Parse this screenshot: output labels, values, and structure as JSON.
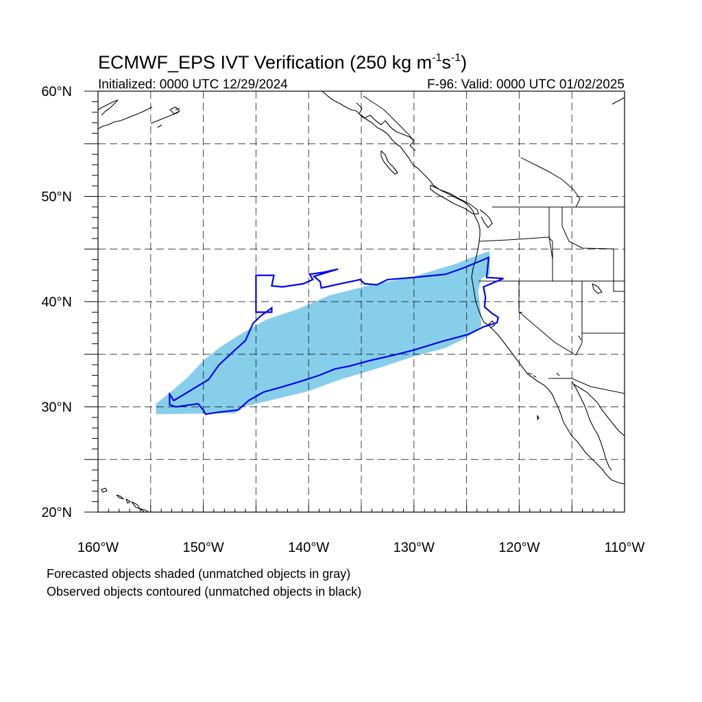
{
  "title_main": "ECMWF_EPS IVT Verification (250 kg m",
  "title_sup1": "-1",
  "title_s": "s",
  "title_sup2": "-1",
  "title_close": ")",
  "initialized": "Initialized: 0000 UTC 12/29/2024",
  "valid": "F-96: Valid: 0000 UTC 01/02/2025",
  "map": {
    "lon_range": [
      -160,
      -110
    ],
    "lat_range": [
      20,
      60
    ],
    "grid_spacing_deg": 5,
    "projection": "cylindrical equidistant",
    "lat_labels": [
      {
        "lat": 60,
        "text": "60°N"
      },
      {
        "lat": 50,
        "text": "50°N"
      },
      {
        "lat": 40,
        "text": "40°N"
      },
      {
        "lat": 30,
        "text": "30°N"
      },
      {
        "lat": 20,
        "text": "20°N"
      }
    ],
    "lon_labels": [
      {
        "lon": -160,
        "text": "160°W"
      },
      {
        "lon": -150,
        "text": "150°W"
      },
      {
        "lon": -140,
        "text": "140°W"
      },
      {
        "lon": -130,
        "text": "130°W"
      },
      {
        "lon": -120,
        "text": "120°W"
      },
      {
        "lon": -110,
        "text": "110°W"
      }
    ]
  },
  "colors": {
    "forecast_fill": "#87CEEB",
    "observed_contour": "#0000EE",
    "coast": "#000000"
  },
  "forecast_object": {
    "polygon": [
      [
        -154.5,
        29.3
      ],
      [
        -147.0,
        29.4
      ],
      [
        -146.2,
        30.0
      ],
      [
        -140.0,
        31.5
      ],
      [
        -137.0,
        32.6
      ],
      [
        -133.0,
        33.8
      ],
      [
        -130.0,
        34.8
      ],
      [
        -127.0,
        35.6
      ],
      [
        -125.0,
        36.6
      ],
      [
        -123.6,
        37.7
      ],
      [
        -123.7,
        39.5
      ],
      [
        -123.9,
        41.0
      ],
      [
        -123.6,
        42.2
      ],
      [
        -122.8,
        42.6
      ],
      [
        -122.8,
        44.8
      ],
      [
        -124.0,
        44.4
      ],
      [
        -126.0,
        43.6
      ],
      [
        -130.0,
        42.4
      ],
      [
        -134.0,
        41.6
      ],
      [
        -138.0,
        40.6
      ],
      [
        -141.0,
        39.3
      ],
      [
        -144.0,
        38.3
      ],
      [
        -146.5,
        36.9
      ],
      [
        -148.5,
        35.6
      ],
      [
        -150.0,
        34.4
      ],
      [
        -151.5,
        32.8
      ],
      [
        -153.0,
        31.5
      ],
      [
        -154.5,
        30.3
      ]
    ]
  },
  "observed_object": {
    "polygon": [
      [
        -152.8,
        30.6
      ],
      [
        -149.5,
        32.6
      ],
      [
        -148.5,
        34.0
      ],
      [
        -147.0,
        35.4
      ],
      [
        -146.0,
        36.3
      ],
      [
        -145.3,
        37.9
      ],
      [
        -144.6,
        38.6
      ],
      [
        -143.5,
        39.4
      ],
      [
        -143.5,
        39.0
      ],
      [
        -145.0,
        39.0
      ],
      [
        -145.0,
        42.5
      ],
      [
        -143.3,
        42.5
      ],
      [
        -143.5,
        41.5
      ],
      [
        -142.5,
        41.4
      ],
      [
        -140.5,
        41.7
      ],
      [
        -139.6,
        42.1
      ],
      [
        -139.9,
        42.6
      ],
      [
        -138.5,
        42.8
      ],
      [
        -137.2,
        43.1
      ],
      [
        -139.5,
        42.4
      ],
      [
        -138.9,
        41.9
      ],
      [
        -138.8,
        41.3
      ],
      [
        -137.0,
        41.7
      ],
      [
        -135.1,
        42.1
      ],
      [
        -134.7,
        41.7
      ],
      [
        -133.5,
        41.6
      ],
      [
        -132.5,
        42.1
      ],
      [
        -130.0,
        42.3
      ],
      [
        -127.0,
        42.6
      ],
      [
        -125.3,
        43.2
      ],
      [
        -123.6,
        43.9
      ],
      [
        -122.9,
        44.2
      ],
      [
        -123.1,
        42.3
      ],
      [
        -121.5,
        42.2
      ],
      [
        -123.4,
        41.4
      ],
      [
        -123.2,
        40.4
      ],
      [
        -123.3,
        39.5
      ],
      [
        -122.6,
        38.9
      ],
      [
        -122.0,
        38.5
      ],
      [
        -122.1,
        38.0
      ],
      [
        -123.4,
        37.6
      ],
      [
        -124.8,
        36.9
      ],
      [
        -127.4,
        36.2
      ],
      [
        -130.0,
        35.4
      ],
      [
        -132.0,
        34.9
      ],
      [
        -134.2,
        34.4
      ],
      [
        -136.0,
        33.9
      ],
      [
        -137.5,
        33.6
      ],
      [
        -139.0,
        33.0
      ],
      [
        -140.5,
        32.5
      ],
      [
        -142.5,
        31.9
      ],
      [
        -144.3,
        31.4
      ],
      [
        -145.7,
        30.6
      ],
      [
        -146.7,
        29.7
      ],
      [
        -148.5,
        29.5
      ],
      [
        -149.8,
        29.3
      ],
      [
        -150.0,
        29.7
      ],
      [
        -150.5,
        30.3
      ],
      [
        -152.6,
        30.0
      ],
      [
        -153.2,
        30.2
      ],
      [
        -153.2,
        31.2
      ]
    ]
  },
  "footnote_1": "Forecasted objects shaded (unmatched objects in gray)",
  "footnote_2": "Observed objects contoured (unmatched objects in black)"
}
